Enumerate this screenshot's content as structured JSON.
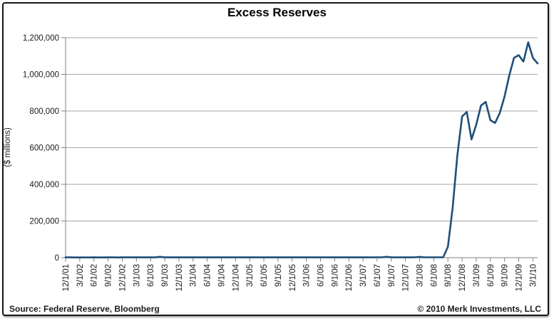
{
  "chart_data": {
    "type": "line",
    "title": "Excess Reserves",
    "ylabel": "($ millions)",
    "ylim": [
      0,
      1200000
    ],
    "ytick_step": 200000,
    "ytick_labels": [
      "0",
      "200,000",
      "400,000",
      "600,000",
      "800,000",
      "1,000,000",
      "1,200,000"
    ],
    "x_tick_labels": [
      "12/1/01",
      "3/1/02",
      "6/1/02",
      "9/1/02",
      "12/1/02",
      "3/1/03",
      "6/1/03",
      "9/1/03",
      "12/1/03",
      "3/1/04",
      "6/1/04",
      "9/1/04",
      "12/1/04",
      "3/1/05",
      "6/1/05",
      "9/1/05",
      "12/1/05",
      "3/1/06",
      "6/1/06",
      "9/1/06",
      "12/1/06",
      "3/1/07",
      "6/1/07",
      "9/1/07",
      "12/1/07",
      "3/1/08",
      "6/1/08",
      "9/1/08",
      "12/1/08",
      "3/1/09",
      "6/1/09",
      "9/1/09",
      "12/1/09",
      "3/1/10"
    ],
    "months_per_tick": 3,
    "grid": "horizontal-only",
    "legend": "none",
    "series": [
      {
        "name": "Excess Reserves",
        "frequency": "monthly",
        "start": "12/1/01",
        "monthly_values": [
          1600,
          1450,
          1350,
          1300,
          1350,
          1300,
          1400,
          1350,
          1300,
          1500,
          1400,
          1350,
          1550,
          1450,
          1400,
          1500,
          1450,
          1400,
          1500,
          1600,
          4500,
          1700,
          1500,
          1450,
          1600,
          1500,
          1450,
          1500,
          1550,
          1500,
          1600,
          1550,
          1500,
          1600,
          1550,
          1500,
          1650,
          1550,
          1500,
          1600,
          1550,
          1500,
          1650,
          1600,
          1550,
          1700,
          1600,
          1550,
          1700,
          1600,
          1550,
          1650,
          1600,
          1550,
          1700,
          1650,
          1600,
          1700,
          1650,
          1600,
          1750,
          1650,
          1600,
          1700,
          1650,
          1600,
          1750,
          1800,
          4600,
          1900,
          1700,
          1650,
          1800,
          1700,
          1800,
          4200,
          1850,
          1900,
          1950,
          1900,
          1950,
          60000,
          270000,
          560000,
          770000,
          795000,
          645000,
          725000,
          830000,
          850000,
          750000,
          735000,
          790000,
          880000,
          995000,
          1090000,
          1105000,
          1070000,
          1175000,
          1090000,
          1060000
        ]
      }
    ]
  },
  "footer": {
    "source": "Source: Federal Reserve, Bloomberg",
    "copyright": "© 2010 Merk Investments, LLC"
  },
  "colors": {
    "line": "#1F4E79",
    "gridline": "#A6A6A6",
    "axis": "#808080",
    "text": "#1A1A1A",
    "border": "#161616"
  }
}
